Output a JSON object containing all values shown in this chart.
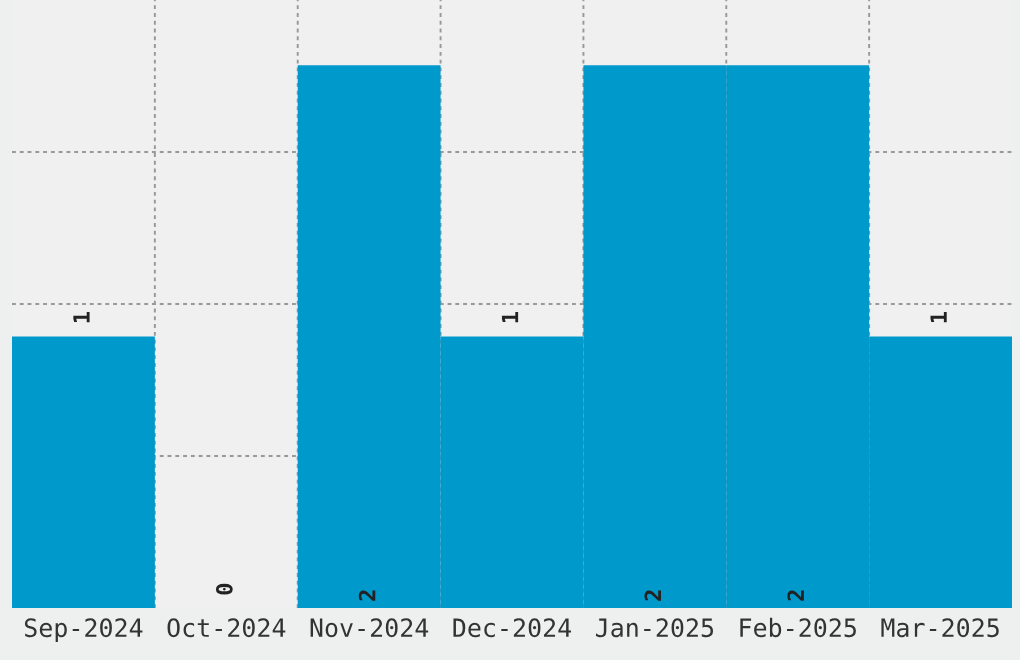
{
  "chart_data": {
    "type": "bar",
    "categories": [
      "Sep-2024",
      "Oct-2024",
      "Nov-2024",
      "Dec-2024",
      "Jan-2025",
      "Feb-2025",
      "Mar-2025"
    ],
    "values": [
      1,
      0,
      2,
      1,
      2,
      2,
      1
    ],
    "color": "#0099cc",
    "data_labels": true,
    "ylim": [
      0,
      2.24
    ],
    "yticks": [
      {
        "value": 0.56,
        "label": null
      },
      {
        "value": 1.12,
        "label": null
      },
      {
        "value": 1.68,
        "label": null
      }
    ],
    "grid": true,
    "tick_labels": "x"
  }
}
